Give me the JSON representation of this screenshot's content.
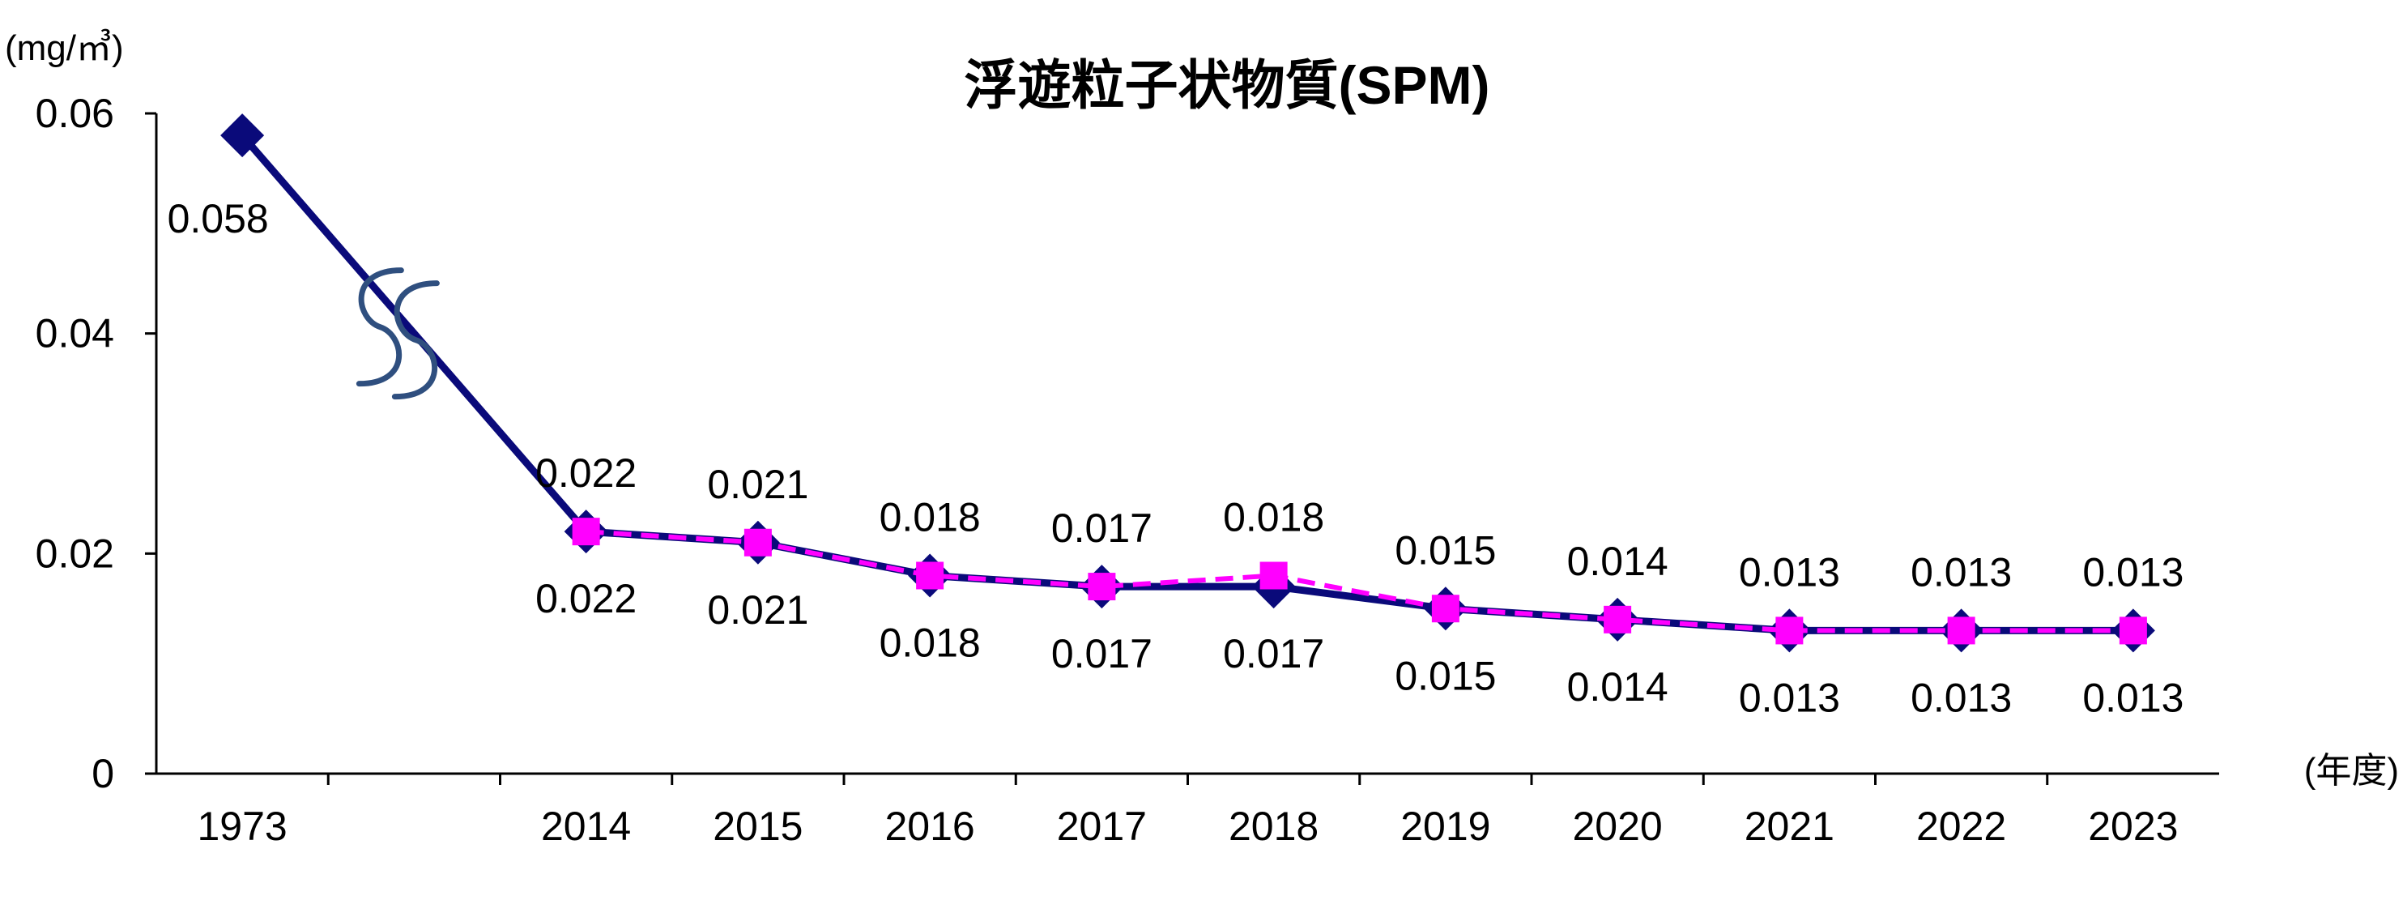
{
  "chart_data": {
    "type": "line",
    "title": "浮遊粒子状物質(SPM)",
    "y_unit": "(mg/㎥)",
    "x_unit": "(年度)",
    "ylim": [
      0,
      0.06
    ],
    "y_ticks": [
      "0",
      "0.02",
      "0.04",
      "0.06"
    ],
    "categories": [
      "1973",
      "",
      "2014",
      "2015",
      "2016",
      "2017",
      "2018",
      "2019",
      "2020",
      "2021",
      "2022",
      "2023"
    ],
    "axis_break": "between 1973 and 2014",
    "grid": false,
    "legend": "none",
    "series": [
      {
        "style": "solid",
        "marker": "diamond",
        "color": "#0a0a7a",
        "values": [
          0.058,
          null,
          0.022,
          0.021,
          0.018,
          0.017,
          0.017,
          0.015,
          0.014,
          0.013,
          0.013,
          0.013
        ],
        "labels": [
          "0.058",
          "",
          "0.022",
          "0.021",
          "0.018",
          "0.017",
          "0.017",
          "0.015",
          "0.014",
          "0.013",
          "0.013",
          "0.013"
        ],
        "label_position": "below"
      },
      {
        "style": "dashed",
        "marker": "square",
        "color": "#ff00ff",
        "values": [
          null,
          null,
          0.022,
          0.021,
          0.018,
          0.017,
          0.018,
          0.015,
          0.014,
          0.013,
          0.013,
          0.013
        ],
        "labels": [
          "",
          "",
          "0.022",
          "0.021",
          "0.018",
          "0.017",
          "0.018",
          "0.015",
          "0.014",
          "0.013",
          "0.013",
          "0.013"
        ],
        "label_position": "above"
      }
    ]
  }
}
